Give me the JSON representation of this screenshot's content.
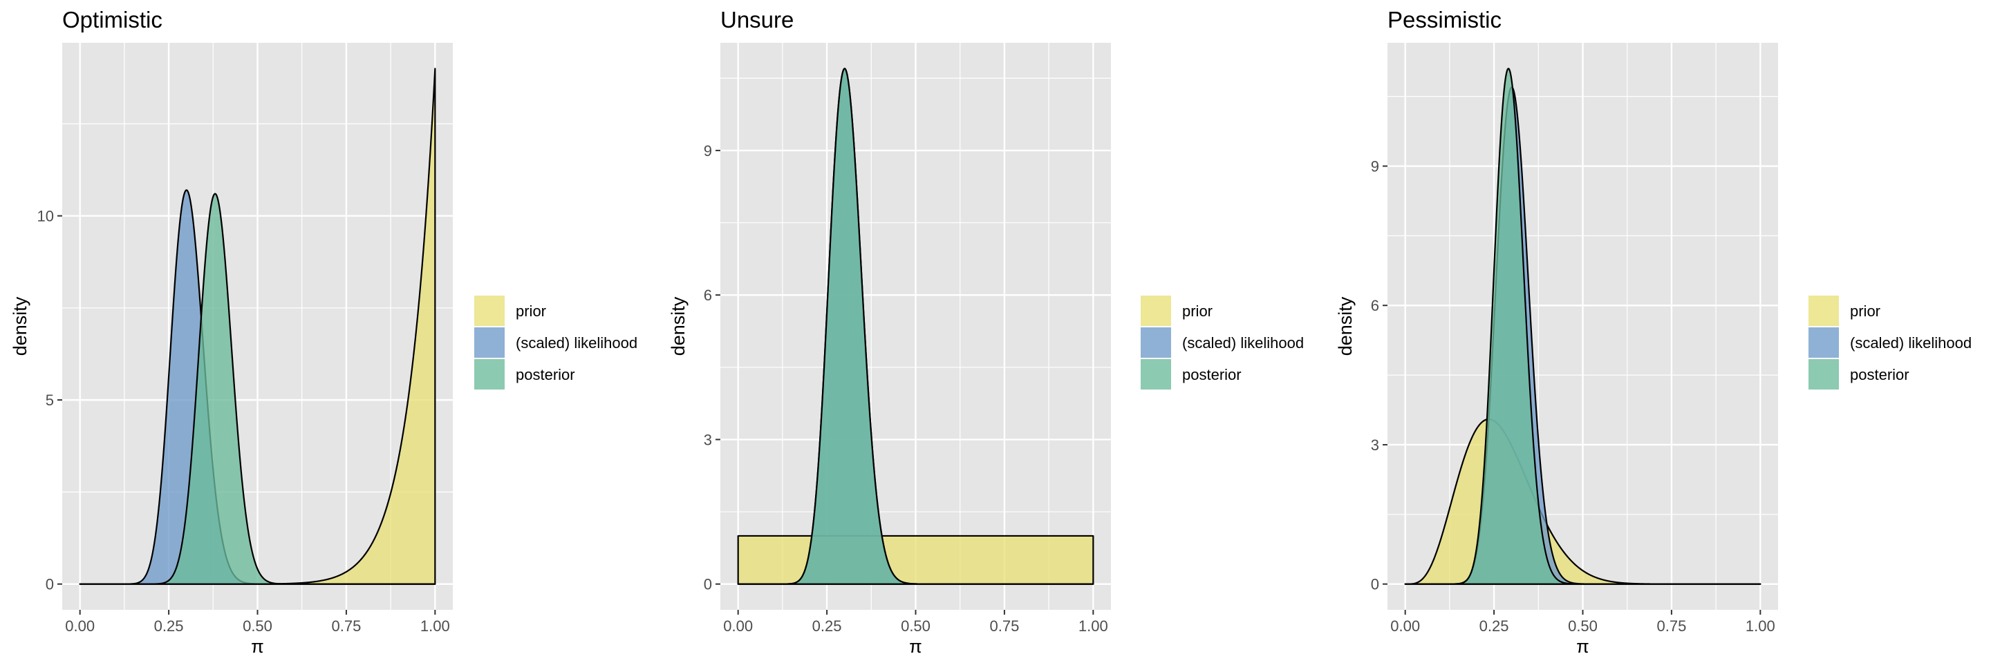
{
  "colors": {
    "panel_bg": "#e5e5e5",
    "grid": "#ffffff",
    "prior": "#e8e079",
    "likelihood": "#6f9bc9",
    "posterior": "#6bbb9b",
    "outline": "#000000"
  },
  "legend": {
    "position": "right",
    "items": [
      {
        "key": "prior",
        "label": "prior"
      },
      {
        "key": "likelihood",
        "label": "(scaled) likelihood"
      },
      {
        "key": "posterior",
        "label": "posterior"
      }
    ]
  },
  "chart_data": [
    {
      "type": "area",
      "title": "Optimistic",
      "xlabel": "π",
      "ylabel": "density",
      "xlim": [
        0,
        1
      ],
      "ylim": [
        0,
        14
      ],
      "x_ticks": [
        "0.00",
        "0.25",
        "0.50",
        "0.75",
        "1.00"
      ],
      "y_ticks": [
        0,
        5,
        10
      ],
      "series": [
        {
          "name": "prior",
          "dist": "beta",
          "a": 14,
          "b": 1,
          "peak": 14
        },
        {
          "name": "(scaled) likelihood",
          "dist": "beta",
          "a": 31,
          "b": 71,
          "peak": 10.7
        },
        {
          "name": "posterior",
          "dist": "beta",
          "a": 44,
          "b": 71,
          "peak": 10.6
        }
      ]
    },
    {
      "type": "area",
      "title": "Unsure",
      "xlabel": "π",
      "ylabel": "density",
      "xlim": [
        0,
        1
      ],
      "ylim": [
        0,
        10.7
      ],
      "x_ticks": [
        "0.00",
        "0.25",
        "0.50",
        "0.75",
        "1.00"
      ],
      "y_ticks": [
        0,
        3,
        6,
        9
      ],
      "series": [
        {
          "name": "prior",
          "dist": "beta",
          "a": 1,
          "b": 1,
          "peak": 1
        },
        {
          "name": "(scaled) likelihood",
          "dist": "beta",
          "a": 31,
          "b": 71,
          "peak": 10.7
        },
        {
          "name": "posterior",
          "dist": "beta",
          "a": 31,
          "b": 71,
          "peak": 10.7
        }
      ]
    },
    {
      "type": "area",
      "title": "Pessimistic",
      "xlabel": "π",
      "ylabel": "density",
      "xlim": [
        0,
        1
      ],
      "ylim": [
        0,
        11.1
      ],
      "x_ticks": [
        "0.00",
        "0.25",
        "0.50",
        "0.75",
        "1.00"
      ],
      "y_ticks": [
        0,
        3,
        6,
        9
      ],
      "series": [
        {
          "name": "prior",
          "dist": "beta",
          "a": 5,
          "b": 14,
          "peak": 3.55
        },
        {
          "name": "(scaled) likelihood",
          "dist": "beta",
          "a": 31,
          "b": 71,
          "peak": 10.7
        },
        {
          "name": "posterior",
          "dist": "beta",
          "a": 35,
          "b": 84,
          "peak": 11.1
        }
      ]
    }
  ]
}
